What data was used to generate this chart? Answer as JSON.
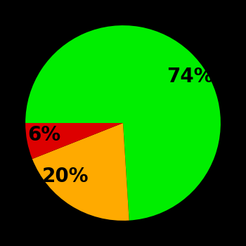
{
  "slices": [
    74,
    20,
    6
  ],
  "labels": [
    "74%",
    "20%",
    "6%"
  ],
  "colors": [
    "#00ee00",
    "#ffaa00",
    "#dd0000"
  ],
  "background_color": "#000000",
  "startangle": 180,
  "counterclock": false,
  "labeldistance": 0.65,
  "label_fontsize": 20,
  "label_fontweight": "bold"
}
